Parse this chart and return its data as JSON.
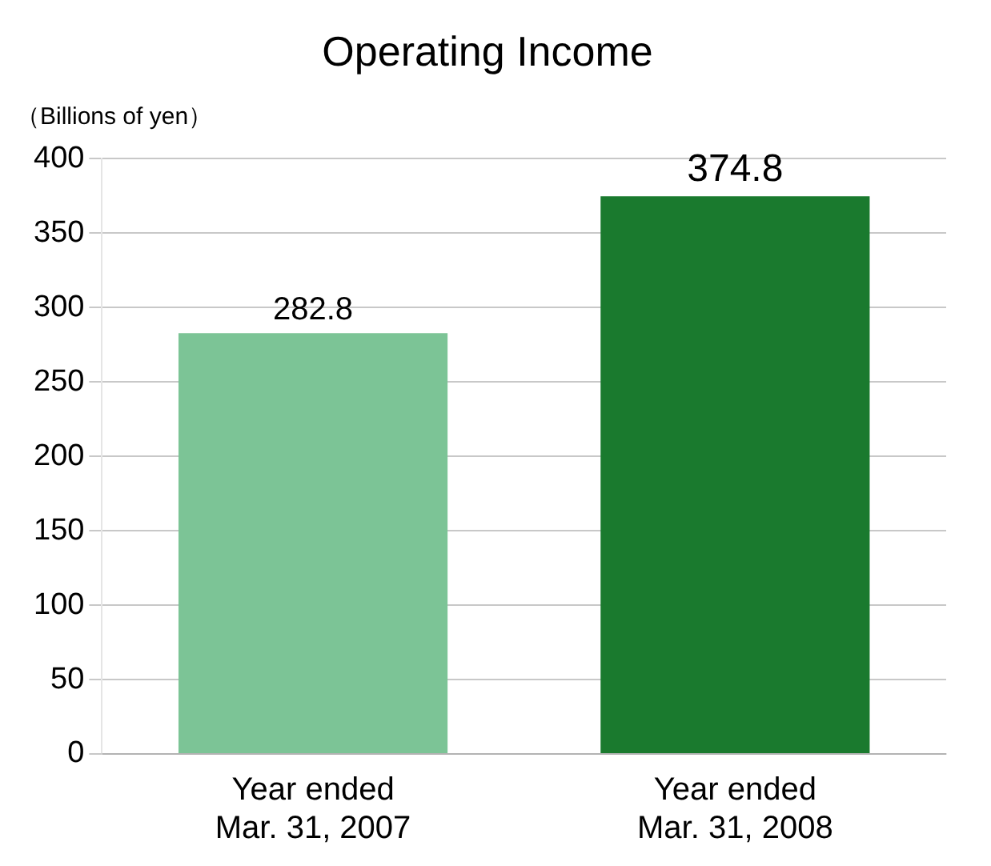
{
  "chart_data": {
    "type": "bar",
    "title": "Operating Income",
    "ylabel": "（Billions of yen）",
    "categories": [
      "Year ended\nMar. 31, 2007",
      "Year ended\nMar. 31, 2008"
    ],
    "values": [
      282.8,
      374.8
    ],
    "colors": [
      "#7cc496",
      "#1a7a2e"
    ],
    "ylim": [
      0,
      400
    ],
    "yticks": [
      0,
      50,
      100,
      150,
      200,
      250,
      300,
      350,
      400
    ],
    "grid": "y",
    "data_labels": true
  }
}
